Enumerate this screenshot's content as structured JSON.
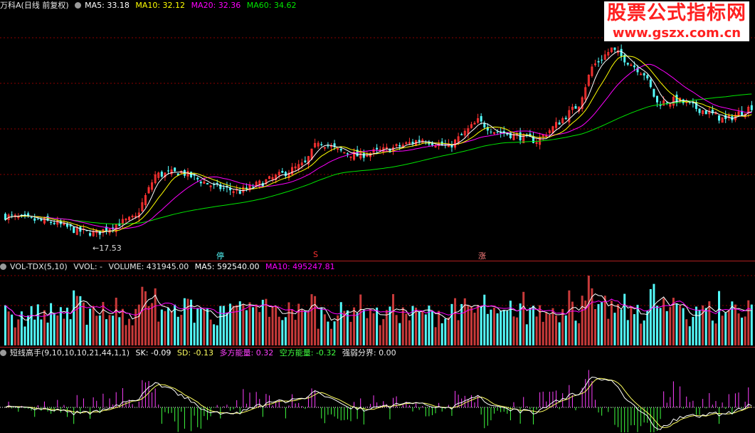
{
  "main_header": {
    "stock_name": "万科A",
    "adjust_mode": "(日线 前复权)",
    "ma5": "MA5: 33.18",
    "ma10": "MA10: 32.12",
    "ma20": "MA20: 32.36",
    "ma60": "MA60: 34.62"
  },
  "low_price_label": "17.53",
  "event_marks": {
    "halt": "停",
    "s_mark": "S",
    "rise": "涨"
  },
  "volume_header": {
    "indicator": "VOL-TDX(5,10)",
    "vvol": "VVOL: -",
    "volume": "VOLUME: 431945.00",
    "ma5": "MA5: 592540.00",
    "ma10": "MA10: 495247.81"
  },
  "osc_header": {
    "indicator": "短线高手(9,10,10,10,21,44,1,1)",
    "sk": "SK: -0.09",
    "sd": "SD: -0.13",
    "bull": "多方能量: 0.32",
    "bear": "空方能量: -0.32",
    "boundary": "强弱分界: 0.00"
  },
  "watermark": {
    "title": "股票公式指标网",
    "url": "www.gszx.com.cn"
  },
  "colors": {
    "up": "#ff3232",
    "down": "#54fcfc",
    "ma5": "#ffffff",
    "ma10": "#ffff00",
    "ma20": "#ff00ff",
    "ma60": "#00e600",
    "grid": "#8b0000"
  },
  "chart_data": [
    {
      "type": "candlestick",
      "title": "万科A (日线 前复权)",
      "approx_close_path": [
        [
          0,
          19.8
        ],
        [
          15,
          19.0
        ],
        [
          22,
          18.0
        ],
        [
          28,
          17.7
        ],
        [
          34,
          18.8
        ],
        [
          40,
          19.6
        ],
        [
          46,
          24.8
        ],
        [
          54,
          25.2
        ],
        [
          64,
          23.4
        ],
        [
          72,
          22.8
        ],
        [
          82,
          24.4
        ],
        [
          92,
          26.2
        ],
        [
          96,
          29.0
        ],
        [
          102,
          27.8
        ],
        [
          108,
          27.2
        ],
        [
          118,
          28.0
        ],
        [
          128,
          29.2
        ],
        [
          136,
          28.2
        ],
        [
          145,
          31.4
        ],
        [
          150,
          30.2
        ],
        [
          158,
          29.5
        ],
        [
          163,
          29.0
        ],
        [
          168,
          30.6
        ],
        [
          176,
          33.5
        ],
        [
          180,
          38.0
        ],
        [
          186,
          40.2
        ],
        [
          190,
          39.0
        ],
        [
          196,
          37.2
        ],
        [
          200,
          33.6
        ],
        [
          206,
          34.0
        ],
        [
          212,
          33.0
        ],
        [
          216,
          32.4
        ],
        [
          221,
          31.5
        ],
        [
          229,
          33.18
        ]
      ],
      "lowest_marked": 17.53,
      "series": [
        {
          "name": "MA5",
          "value": 33.18
        },
        {
          "name": "MA10",
          "value": 32.12
        },
        {
          "name": "MA20",
          "value": 32.36
        },
        {
          "name": "MA60",
          "value": 34.62
        }
      ]
    },
    {
      "type": "bar",
      "title": "VOL-TDX(5,10)",
      "latest_volume": 431945.0,
      "series": [
        {
          "name": "MA5",
          "value": 592540.0
        },
        {
          "name": "MA10",
          "value": 495247.81
        }
      ]
    },
    {
      "type": "oscillator",
      "title": "短线高手(9,10,10,10,21,44,1,1)",
      "series": [
        {
          "name": "SK",
          "value": -0.09
        },
        {
          "name": "SD",
          "value": -0.13
        },
        {
          "name": "多方能量",
          "value": 0.32
        },
        {
          "name": "空方能量",
          "value": -0.32
        },
        {
          "name": "强弱分界",
          "value": 0.0
        }
      ]
    }
  ]
}
